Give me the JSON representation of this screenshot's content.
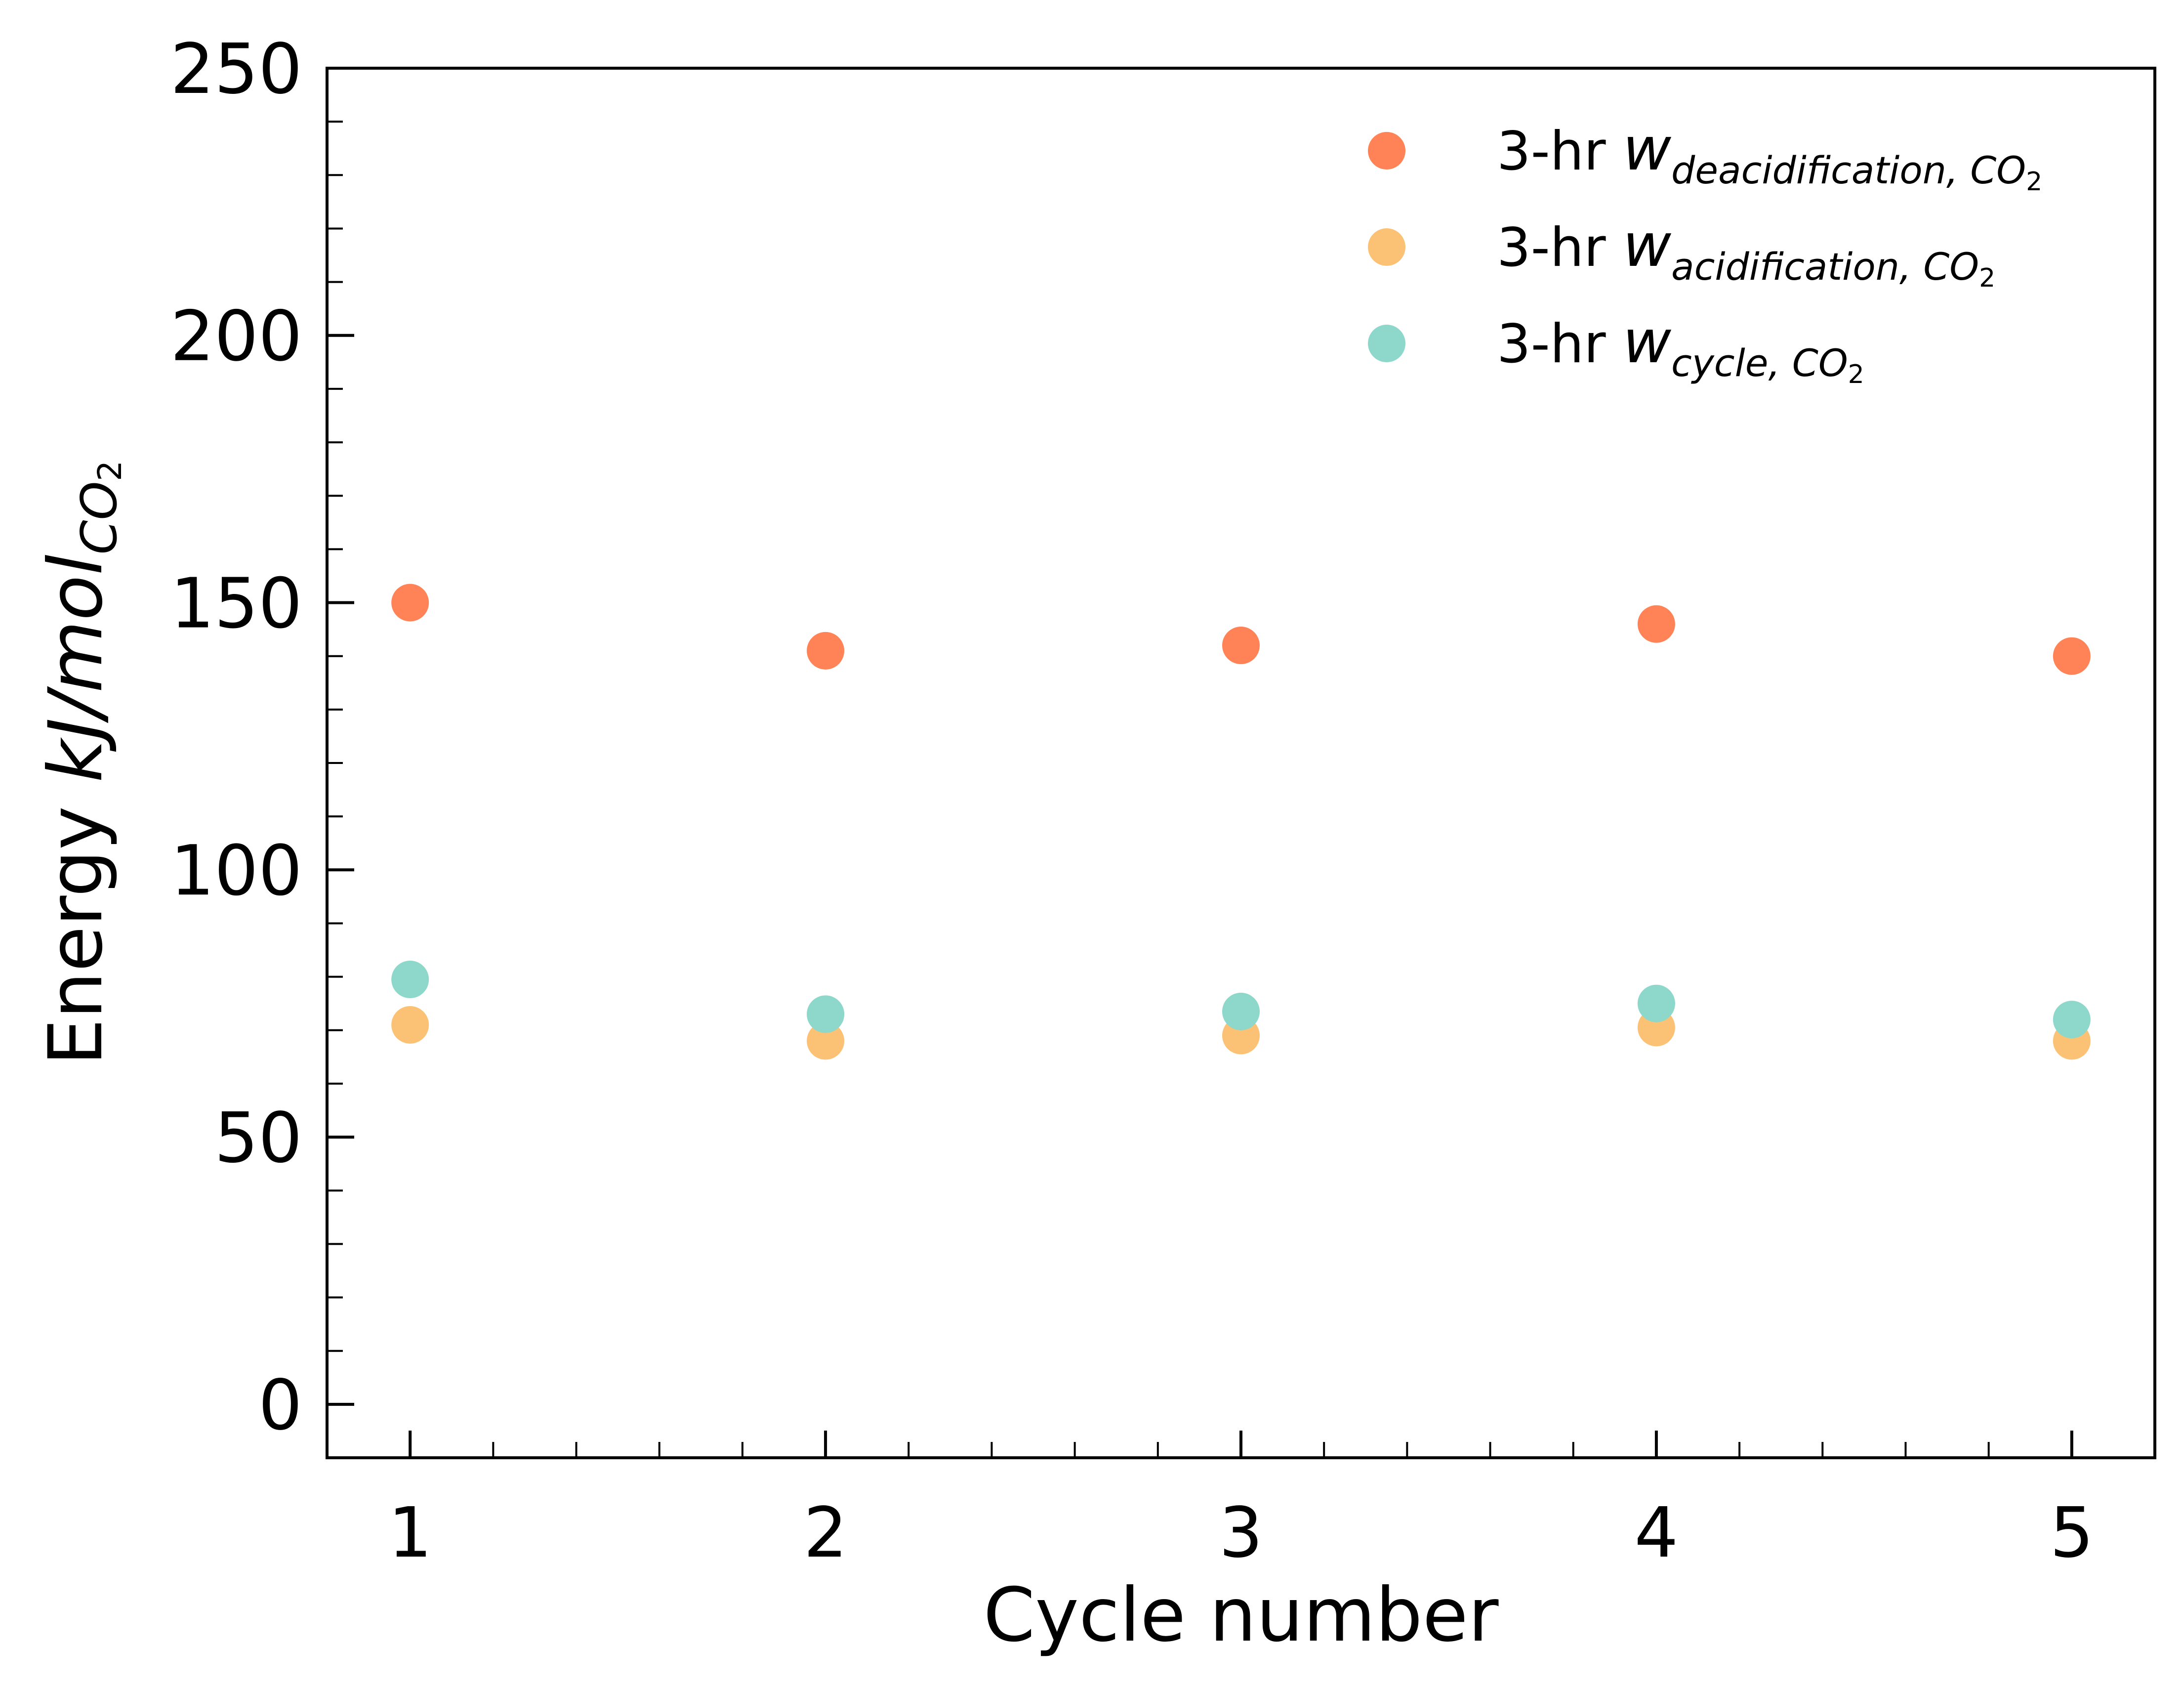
{
  "chart_data": {
    "type": "scatter",
    "xlabel": "Cycle number",
    "ylabel": {
      "prefix": "Energy ",
      "main": "kJ/mol",
      "sub_main": "CO",
      "sub_digit": "2"
    },
    "xlim": [
      0.8,
      5.2
    ],
    "ylim": [
      -10,
      250
    ],
    "xticks": [
      1,
      2,
      3,
      4,
      5
    ],
    "yticks": [
      0,
      50,
      100,
      150,
      200,
      250
    ],
    "grid": false,
    "legend_position": "top-right",
    "series": [
      {
        "name": {
          "prefix": "3-hr ",
          "var": "w",
          "sub": "deacidification, CO",
          "sub_digit": "2"
        },
        "color": "#ff8356",
        "x": [
          1,
          2,
          3,
          4,
          5
        ],
        "y": [
          150,
          141,
          142,
          146,
          140
        ]
      },
      {
        "name": {
          "prefix": "3-hr ",
          "var": "w",
          "sub": "acidification, CO",
          "sub_digit": "2"
        },
        "color": "#fbc276",
        "x": [
          1,
          2,
          3,
          4,
          5
        ],
        "y": [
          71,
          68,
          69,
          70.5,
          68
        ]
      },
      {
        "name": {
          "prefix": "3-hr ",
          "var": "w",
          "sub": "cycle, CO",
          "sub_digit": "2"
        },
        "color": "#8dd7cb",
        "x": [
          1,
          2,
          3,
          4,
          5
        ],
        "y": [
          79.5,
          73,
          73.5,
          75,
          72
        ]
      }
    ]
  }
}
